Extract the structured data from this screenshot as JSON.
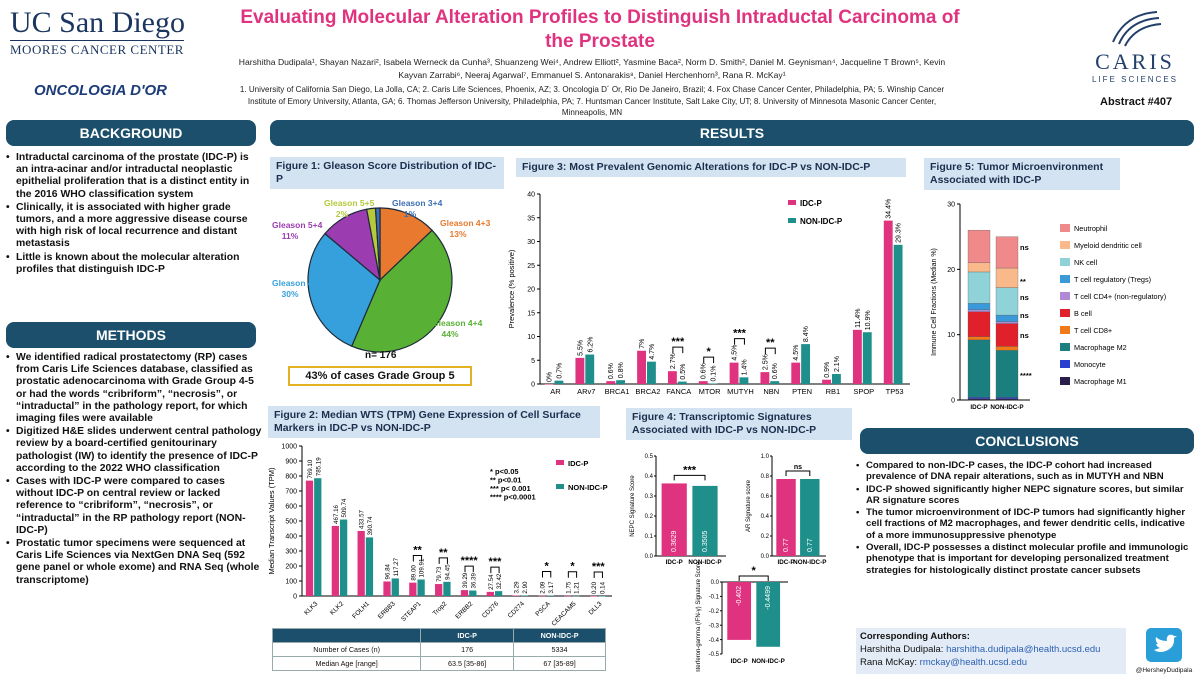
{
  "header": {
    "title": "Evaluating Molecular Alteration Profiles to Distinguish Intraductal Carcinoma of the Prostate",
    "authors": "Harshitha Dudipala¹, Shayan Nazari², Isabela Werneck da Cunha³, Shuanzeng Wei⁴, Andrew Elliott², Yasmine Baca², Norm D. Smith², Daniel M. Geynisman⁴, Jacqueline T Brown⁵, Kevin Kayvan Zarrabi⁶, Neeraj Agarwal⁷, Emmanuel S. Antonarakis⁸, Daniel Herchenhorn³, Rana R. McKay¹",
    "affiliations": "1. University of California San Diego, La Jolla, CA; 2. Caris Life Sciences, Phoenix, AZ; 3. Oncologia D´ Or, Rio De Janeiro, Brazil; 4. Fox Chase Cancer Center, Philadelphia, PA; 5. Winship Cancer Institute of Emory University, Atlanta, GA; 6. Thomas Jefferson University, Philadelphia, PA; 7. Huntsman Cancer Institute, Salt Lake City, UT; 8. University of Minnesota Masonic Cancer Center, Minneapolis, MN",
    "abstract": "Abstract #407"
  },
  "logos": {
    "ucsd_line1": "UC San Diego",
    "ucsd_line2": "MOORES CANCER CENTER",
    "oncologia": "ONCOLOGIA D'OR",
    "caris_name": "CARIS",
    "caris_sub": "LIFE SCIENCES"
  },
  "background": {
    "heading": "BACKGROUND",
    "bullets": [
      "Intraductal carcinoma of the prostate (IDC-P) is an intra-acinar and/or intraductal neoplastic epithelial proliferation that is a distinct entity in the 2016 WHO classification system",
      "Clinically, it is associated with higher grade tumors, and a more aggressive disease course with high risk of local recurrence and distant metastasis",
      "Little is known about the molecular alteration profiles that distinguish IDC-P"
    ]
  },
  "methods": {
    "heading": "METHODS",
    "bullets": [
      "We identified radical prostatectomy (RP) cases from Caris Life Sciences database, classified as prostatic adenocarcinoma with Grade Group 4-5 or had the words “cribriform”, “necrosis”, or “intraductal” in the pathology report, for which imaging files were available",
      "Digitized H&E slides underwent central pathology review by a board-certified genitourinary pathologist (IW) to identify the presence of IDC-P according to the 2022 WHO classification",
      "Cases with IDC-P were compared to cases without IDC-P on central review or lacked reference to “cribriform”, “necrosis”, or “intraductal” in the RP pathology report (NON-IDC-P)",
      "Prostatic tumor specimens were sequenced at Caris Life Sciences via NextGen DNA Seq (592 gene panel or whole exome) and RNA Seq (whole transcriptome)"
    ]
  },
  "results": {
    "heading": "RESULTS"
  },
  "fig1": {
    "title": "Figure 1: Gleason Score Distribution of IDC-P",
    "n_label": "n= 176",
    "gg5_box": "43% of cases Grade Group 5",
    "colors": [
      "#36a0dc",
      "#e8792e",
      "#58b134",
      "#3b6fb6",
      "#9b3db0",
      "#b5c93a"
    ],
    "slices": [
      {
        "label": "Gleason 4+4",
        "pct": "44%",
        "value": 44,
        "color": "#58b134"
      },
      {
        "label": "Gleason 4+5",
        "pct": "30%",
        "value": 30,
        "color": "#36a0dc"
      },
      {
        "label": "Gleason 5+4",
        "pct": "11%",
        "value": 11,
        "color": "#9b3db0"
      },
      {
        "label": "Gleason 5+5",
        "pct": "2%",
        "value": 2,
        "color": "#b5c93a"
      },
      {
        "label": "Gleason 3+4",
        "pct": "1%",
        "value": 1,
        "color": "#3b6fb6"
      },
      {
        "label": "Gleason 4+3",
        "pct": "13%",
        "value": 13,
        "color": "#e8792e"
      }
    ]
  },
  "fig3": {
    "title": "Figure 3: Most Prevalent Genomic Alterations for IDC-P vs NON-IDC-P",
    "ylabel": "Prevalence (% positive)",
    "legend": [
      "IDC-P",
      "NON-IDC-P"
    ],
    "colors": {
      "idc": "#e0337f",
      "non": "#1e8f8a"
    }
  },
  "fig5": {
    "title": "Figure 5: Tumor Microenvironment Associated with IDC-P",
    "ylabel": "Immune Cell Fractions (Median %)",
    "legend": [
      {
        "label": "Neutrophil",
        "color": "#f08a8a"
      },
      {
        "label": "Myeloid dendritic cell",
        "color": "#f9b98a"
      },
      {
        "label": "NK cell",
        "color": "#8fd3d8"
      },
      {
        "label": "T cell regulatory (Tregs)",
        "color": "#3a9ad9"
      },
      {
        "label": "T cell CD4+ (non-regulatory)",
        "color": "#b08ad6"
      },
      {
        "label": "B cell",
        "color": "#e0202b"
      },
      {
        "label": "T cell CD8+",
        "color": "#f07a1a"
      },
      {
        "label": "Macrophage M2",
        "color": "#1b7f7f"
      },
      {
        "label": "Monocyte",
        "color": "#2a3fd0"
      },
      {
        "label": "Macrophage M1",
        "color": "#2a1f4a"
      }
    ],
    "sig": [
      "ns",
      "**",
      "ns",
      "ns",
      "ns",
      "****"
    ]
  },
  "fig2": {
    "title": "Figure 2:  Median WTS (TPM) Gene Expression of Cell Surface Markers in IDC-P vs NON-IDC-P",
    "ylabel": "Median Transcript Values (TPM)",
    "legend": [
      "IDC-P",
      "NON-IDC-P"
    ],
    "sig_key": [
      "* p<0.05",
      "** p<0.01",
      "*** p< 0.001",
      "**** p<0.0001"
    ]
  },
  "fig4": {
    "title": "Figure 4: Transcriptomic Signatures Associated with IDC-P vs NON-IDC-P",
    "nepc_ylabel": "NEPC Signature Score",
    "ar_ylabel": "AR Signature score",
    "ifn_ylabel": "Interferon-gamma (IFN-γ) Signature Score"
  },
  "table": {
    "header": [
      "",
      "IDC-P",
      "NON-IDC-P"
    ],
    "rows": [
      [
        "Number of Cases (n)",
        "176",
        "5334"
      ],
      [
        "Median Age [range]",
        "63.5 [35-86]",
        "67 [35-89]"
      ]
    ]
  },
  "conclusions": {
    "heading": "CONCLUSIONS",
    "bullets": [
      "Compared to non-IDC-P cases, the IDC-P cohort had increased prevalence of DNA repair alterations, such as in MUTYH and NBN",
      "IDC-P showed significantly higher NEPC signature scores, but similar AR signature scores",
      "The tumor microenvironment of IDC-P tumors had significantly higher cell fractions of M2 macrophages, and fewer dendritic cells, indicative of a more immunosuppressive phenotype",
      "Overall, IDC-P possesses a distinct molecular profile and immunologic phenotype that is important for developing personalized treatment strategies for histologically distinct prostate cancer subsets"
    ]
  },
  "contacts": {
    "heading": "Corresponding Authors:",
    "line1_name": "Harshitha Dudipala:",
    "line1_email": "harshitha.dudipala@health.ucsd.edu",
    "line2_name": "Rana McKay:",
    "line2_email": "rmckay@health.ucsd.edu",
    "twitter": "@HersheyDudipala"
  },
  "chart_data": [
    {
      "type": "bar",
      "title": "Figure 3: Most Prevalent Genomic Alterations for IDC-P vs NON-IDC-P",
      "ylabel": "Prevalence (% positive)",
      "ylim": [
        0,
        40
      ],
      "yticks": [
        0,
        5,
        10,
        15,
        20,
        25,
        30,
        35,
        40
      ],
      "categories": [
        "AR",
        "ARv7",
        "BRCA1",
        "BRCA2",
        "FANCA",
        "MTOR",
        "MUTYH",
        "NBN",
        "PTEN",
        "RB1",
        "SPOP",
        "TP53"
      ],
      "series": [
        {
          "name": "IDC-P",
          "values": [
            0,
            5.5,
            0.6,
            7,
            2.7,
            0.6,
            4.5,
            2.5,
            4.5,
            0.9,
            11.4,
            34.4
          ],
          "labels": [
            "0%",
            "5.5%",
            "0.6%",
            "7%",
            "2.7%",
            "0.6%",
            "4.5%",
            "2.5%",
            "4.5%",
            "0.9%",
            "11.4%",
            "34.4%"
          ]
        },
        {
          "name": "NON-IDC-P",
          "values": [
            0.7,
            6.2,
            0.8,
            4.7,
            0.5,
            0.1,
            1.4,
            0.6,
            8.4,
            2.1,
            10.9,
            29.3
          ],
          "labels": [
            "0.7%",
            "6.2%",
            "0.8%",
            "4.7%",
            "0.5%",
            "0.1%",
            "1.4%",
            "0.6%",
            "8.4%",
            "2.1%",
            "10.9%",
            "29.3%"
          ]
        }
      ],
      "significance": [
        {
          "category": "FANCA",
          "mark": "***"
        },
        {
          "category": "MTOR",
          "mark": "*"
        },
        {
          "category": "MUTYH",
          "mark": "***"
        },
        {
          "category": "NBN",
          "mark": "**"
        }
      ]
    },
    {
      "type": "bar",
      "title": "Figure 2:  Median WTS (TPM) Gene Expression of Cell Surface Markers in IDC-P vs NON-IDC-P",
      "ylabel": "Median Transcript Values (TPM)",
      "ylim": [
        0,
        1000
      ],
      "yticks": [
        0,
        100,
        200,
        300,
        400,
        500,
        600,
        700,
        800,
        900,
        1000
      ],
      "categories": [
        "KLK3",
        "KLK2",
        "FOLH1",
        "ERBB3",
        "STEAP1",
        "Trop2",
        "ERBB2",
        "CD276",
        "CD274",
        "PSCA",
        "CEACAM5",
        "DLL3"
      ],
      "series": [
        {
          "name": "IDC-P",
          "values": [
            769.1,
            467.16,
            433.57,
            96.84,
            89.0,
            79.73,
            39.29,
            27.54,
            3.29,
            2.09,
            1.75,
            0.2
          ],
          "labels": [
            "769.10",
            "467.16",
            "433.57",
            "96.84",
            "89.00",
            "79.73",
            "39.29",
            "27.54",
            "3.29",
            "2.09",
            "1.75",
            "0.20"
          ]
        },
        {
          "name": "NON-IDC-P",
          "values": [
            785.19,
            509.74,
            390.74,
            117.27,
            109.91,
            94.45,
            36.39,
            32.42,
            2.9,
            3.17,
            1.21,
            0.14
          ],
          "labels": [
            "785.19",
            "509.74",
            "390.74",
            "117.27",
            "109.91",
            "94.45",
            "36.39",
            "32.42",
            "2.90",
            "3.17",
            "1.21",
            "0.14"
          ]
        }
      ],
      "significance": [
        {
          "category": "STEAP1",
          "mark": "**"
        },
        {
          "category": "Trop2",
          "mark": "**"
        },
        {
          "category": "ERBB2",
          "mark": "****"
        },
        {
          "category": "CD276",
          "mark": "***"
        },
        {
          "category": "PSCA",
          "mark": "*"
        },
        {
          "category": "CEACAM5",
          "mark": "*"
        },
        {
          "category": "DLL3",
          "mark": "***"
        }
      ]
    },
    {
      "type": "bar",
      "title": "NEPC Signature Score",
      "ylim": [
        0,
        0.5
      ],
      "yticks": [
        0.0,
        0.1,
        0.2,
        0.3,
        0.4,
        0.5
      ],
      "categories": [
        "IDC-P",
        "NON-IDC-P"
      ],
      "values": [
        0.3629,
        0.3505
      ],
      "labels": [
        "0.3629",
        "0.3505"
      ],
      "significance": "***"
    },
    {
      "type": "bar",
      "title": "AR Signature score",
      "ylim": [
        0,
        1.0
      ],
      "yticks": [
        0.0,
        0.2,
        0.4,
        0.6,
        0.8,
        1.0
      ],
      "categories": [
        "IDC-P",
        "NON-IDC-P"
      ],
      "values": [
        0.77,
        0.77
      ],
      "labels": [
        "0.77",
        "0.77"
      ],
      "significance": "ns"
    },
    {
      "type": "bar",
      "title": "Interferon-gamma (IFN-γ) Signature Score",
      "ylim": [
        -0.5,
        0.0
      ],
      "yticks": [
        0.0,
        -0.1,
        -0.2,
        -0.3,
        -0.4,
        -0.5
      ],
      "categories": [
        "IDC-P",
        "NON-IDC-P"
      ],
      "values": [
        -0.402,
        -0.4499
      ],
      "labels": [
        "-0.402",
        "-0.4499"
      ],
      "significance": "*"
    },
    {
      "type": "bar",
      "title": "Figure 5: Tumor Microenvironment Associated with IDC-P",
      "ylabel": "Immune Cell Fractions (Median %)",
      "ylim": [
        0,
        30
      ],
      "yticks": [
        0,
        10,
        20,
        30
      ],
      "categories": [
        "IDC-P",
        "NON-IDC-P"
      ],
      "stacked": true,
      "series": [
        {
          "name": "Macrophage M1",
          "values": [
            0.2,
            0.2
          ]
        },
        {
          "name": "Monocyte",
          "values": [
            0.2,
            0.2
          ]
        },
        {
          "name": "Macrophage M2",
          "values": [
            8.8,
            7.2
          ]
        },
        {
          "name": "T cell CD8+",
          "values": [
            0.5,
            0.6
          ]
        },
        {
          "name": "B cell",
          "values": [
            3.8,
            3.5
          ]
        },
        {
          "name": "T cell CD4+ (non-regulatory)",
          "values": [
            0.3,
            0.3
          ]
        },
        {
          "name": "T cell regulatory (Tregs)",
          "values": [
            1.0,
            1.0
          ]
        },
        {
          "name": "NK cell",
          "values": [
            4.8,
            4.2
          ]
        },
        {
          "name": "Myeloid dendritic cell",
          "values": [
            1.4,
            3.0
          ]
        },
        {
          "name": "Neutrophil",
          "values": [
            5.0,
            4.8
          ]
        }
      ]
    },
    {
      "type": "pie",
      "title": "Figure 1: Gleason Score Distribution of IDC-P",
      "categories": [
        "Gleason 4+4",
        "Gleason 4+5",
        "Gleason 5+4",
        "Gleason 5+5",
        "Gleason 3+4",
        "Gleason 4+3"
      ],
      "values": [
        44,
        30,
        11,
        2,
        1,
        13
      ]
    }
  ]
}
